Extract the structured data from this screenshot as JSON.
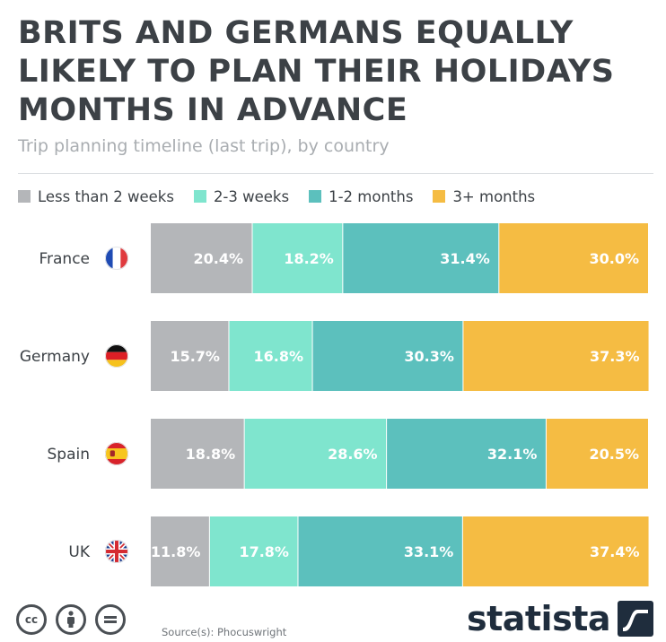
{
  "title": "BRITS AND GERMANS EQUALLY LIKELY TO PLAN THEIR HOLIDAYS MONTHS IN ADVANCE",
  "subtitle": "Trip planning timeline (last trip), by country",
  "source": "Source(s): Phocuswright",
  "brand": "statista",
  "colors": {
    "less_than_2_weeks": "#b4b6b9",
    "2_3_weeks": "#7fe5ce",
    "1_2_months": "#5cc0bd",
    "3_plus_months": "#f5bc43"
  },
  "chart_data": {
    "type": "bar",
    "orientation": "horizontal",
    "stacked": true,
    "categories": [
      "France",
      "Germany",
      "Spain",
      "UK"
    ],
    "series": [
      {
        "name": "Less than 2 weeks",
        "color": "#b4b6b9",
        "values": [
          20.4,
          15.7,
          18.8,
          11.8
        ]
      },
      {
        "name": "2-3 weeks",
        "color": "#7fe5ce",
        "values": [
          18.2,
          16.8,
          28.6,
          17.8
        ]
      },
      {
        "name": "1-2 months",
        "color": "#5cc0bd",
        "values": [
          31.4,
          30.3,
          32.1,
          33.1
        ]
      },
      {
        "name": "3+ months",
        "color": "#f5bc43",
        "values": [
          30.0,
          37.3,
          20.5,
          37.4
        ]
      }
    ],
    "value_suffix": "%",
    "xlim": [
      0,
      100
    ],
    "grid": false,
    "legend_position": "top-left"
  },
  "flags": [
    "france-flag-icon",
    "germany-flag-icon",
    "spain-flag-icon",
    "uk-flag-icon"
  ]
}
